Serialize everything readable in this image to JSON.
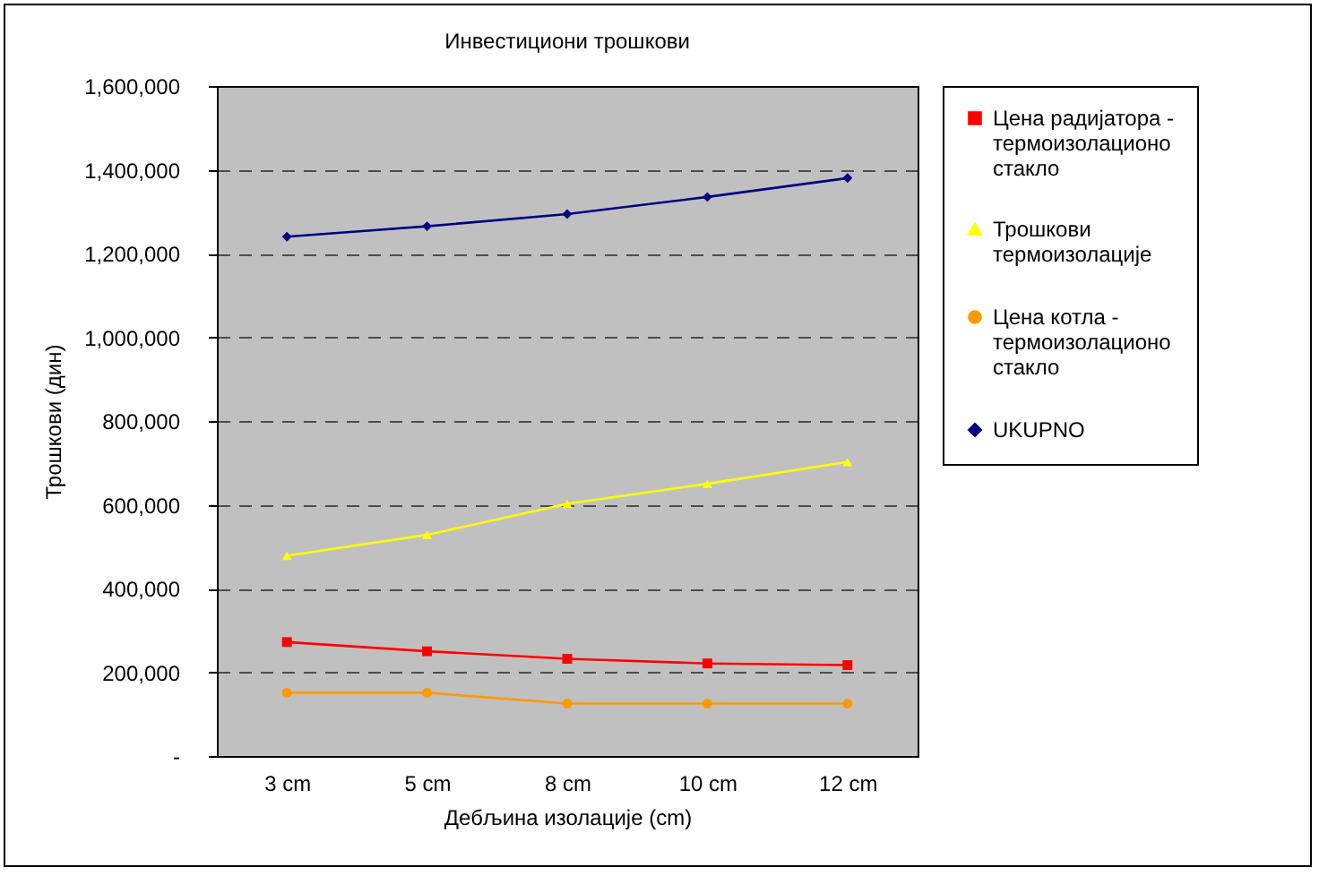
{
  "chart_data": {
    "type": "line",
    "title": "Инвестициони трошкови",
    "xlabel": "Дебљина изолације (cm)",
    "ylabel": "Трошкови (дин)",
    "categories": [
      "3 cm",
      "5 cm",
      "8 cm",
      "10 cm",
      "12 cm"
    ],
    "series": [
      {
        "name": "Цена радијатора - термоизолационо стакло",
        "color": "#ff0000",
        "marker": "square",
        "values": [
          272000,
          250000,
          232000,
          221000,
          217000
        ]
      },
      {
        "name": "Трошкови термоизолације",
        "color": "#ffff00",
        "marker": "triangle",
        "values": [
          478000,
          528000,
          602000,
          650000,
          702000
        ]
      },
      {
        "name": "Цена котла - термоизолационо стакло",
        "color": "#ff9900",
        "marker": "circle",
        "values": [
          151000,
          151000,
          125000,
          125000,
          125000
        ]
      },
      {
        "name": "UKUPNO",
        "color": "#000080",
        "marker": "diamond",
        "values": [
          1240000,
          1265000,
          1294000,
          1335000,
          1380000
        ]
      }
    ],
    "ylim": [
      0,
      1600000
    ],
    "yticks": [
      {
        "value": 0,
        "label": "-"
      },
      {
        "value": 200000,
        "label": "200,000"
      },
      {
        "value": 400000,
        "label": "400,000"
      },
      {
        "value": 600000,
        "label": "600,000"
      },
      {
        "value": 800000,
        "label": "800,000"
      },
      {
        "value": 1000000,
        "label": "1,000,000"
      },
      {
        "value": 1200000,
        "label": "1,200,000"
      },
      {
        "value": 1400000,
        "label": "1,400,000"
      },
      {
        "value": 1600000,
        "label": "1,600,000"
      }
    ],
    "grid": "y",
    "legend": "right",
    "line_style": "solid"
  }
}
